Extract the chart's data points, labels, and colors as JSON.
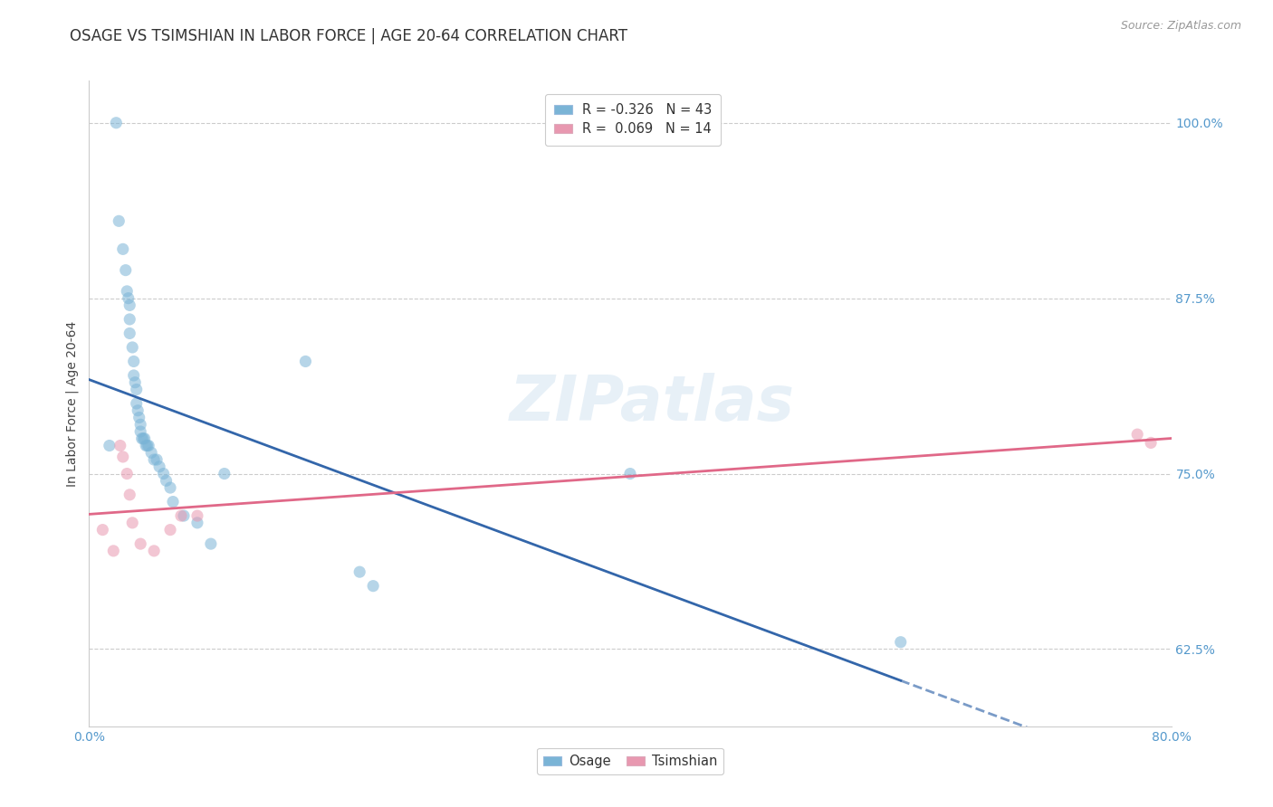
{
  "title": "OSAGE VS TSIMSHIAN IN LABOR FORCE | AGE 20-64 CORRELATION CHART",
  "source": "Source: ZipAtlas.com",
  "ylabel": "In Labor Force | Age 20-64",
  "xlim": [
    0.0,
    0.8
  ],
  "ylim": [
    0.57,
    1.03
  ],
  "ytick_positions": [
    0.625,
    0.75,
    0.875,
    1.0
  ],
  "yticklabels": [
    "62.5%",
    "75.0%",
    "87.5%",
    "100.0%"
  ],
  "grid_color": "#cccccc",
  "background_color": "#ffffff",
  "watermark": "ZIPatlas",
  "osage_x": [
    0.015,
    0.02,
    0.022,
    0.025,
    0.027,
    0.028,
    0.029,
    0.03,
    0.03,
    0.03,
    0.032,
    0.033,
    0.033,
    0.034,
    0.035,
    0.035,
    0.036,
    0.037,
    0.038,
    0.038,
    0.039,
    0.04,
    0.041,
    0.042,
    0.043,
    0.044,
    0.046,
    0.048,
    0.05,
    0.052,
    0.055,
    0.057,
    0.06,
    0.062,
    0.07,
    0.08,
    0.09,
    0.1,
    0.16,
    0.2,
    0.4,
    0.6,
    0.21
  ],
  "osage_y": [
    0.77,
    1.0,
    0.93,
    0.91,
    0.895,
    0.88,
    0.875,
    0.87,
    0.86,
    0.85,
    0.84,
    0.83,
    0.82,
    0.815,
    0.81,
    0.8,
    0.795,
    0.79,
    0.785,
    0.78,
    0.775,
    0.775,
    0.775,
    0.77,
    0.77,
    0.77,
    0.765,
    0.76,
    0.76,
    0.755,
    0.75,
    0.745,
    0.74,
    0.73,
    0.72,
    0.715,
    0.7,
    0.75,
    0.83,
    0.68,
    0.75,
    0.63,
    0.67
  ],
  "tsimshian_x": [
    0.01,
    0.018,
    0.023,
    0.025,
    0.028,
    0.03,
    0.032,
    0.038,
    0.048,
    0.06,
    0.068,
    0.08,
    0.775,
    0.785
  ],
  "tsimshian_y": [
    0.71,
    0.695,
    0.77,
    0.762,
    0.75,
    0.735,
    0.715,
    0.7,
    0.695,
    0.71,
    0.72,
    0.72,
    0.778,
    0.772
  ],
  "osage_color": "#7ab4d6",
  "tsimshian_color": "#e898b0",
  "osage_line_color": "#3366aa",
  "tsimshian_line_color": "#e06888",
  "marker_size": 90,
  "marker_alpha": 0.55,
  "line_width": 2.0,
  "title_fontsize": 12,
  "axis_label_fontsize": 10,
  "tick_fontsize": 10,
  "source_fontsize": 9,
  "legend_fontsize": 10.5
}
